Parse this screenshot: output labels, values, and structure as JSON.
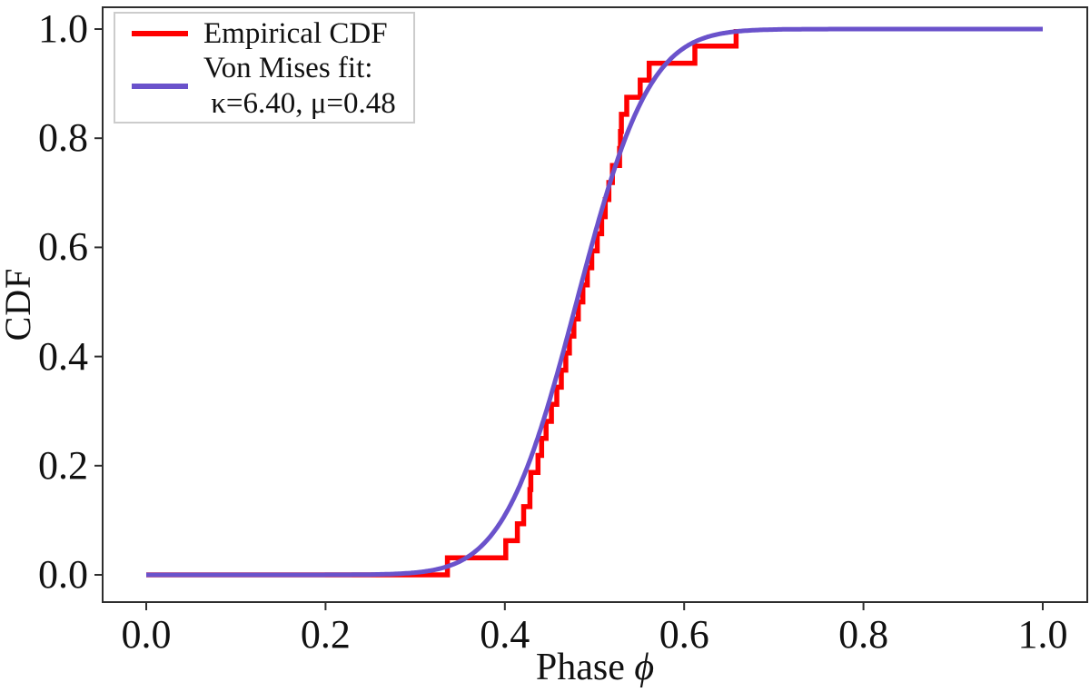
{
  "axes": {
    "xlabel_text": "Phase",
    "xlabel_symbol": "ϕ",
    "ylabel": "CDF",
    "x_tick_labels": [
      "0.0",
      "0.2",
      "0.4",
      "0.6",
      "0.8",
      "1.0"
    ],
    "y_tick_labels": [
      "0.0",
      "0.2",
      "0.4",
      "0.6",
      "0.8",
      "1.0"
    ]
  },
  "legend": {
    "entry1_label": "Empirical CDF",
    "entry2_line1": "Von Mises fit:",
    "entry2_line2": " κ=6.40, μ=0.48"
  },
  "colors": {
    "empirical": "#ff0000",
    "fit": "#6a52cb",
    "spine": "#2e2e2e",
    "legend_border": "#cccccc"
  },
  "chart_data": {
    "type": "line",
    "title": "",
    "xlabel": "Phase ϕ",
    "ylabel": "CDF",
    "xlim": [
      0.0,
      1.0
    ],
    "ylim": [
      0.0,
      1.0
    ],
    "x_ticks": [
      0.0,
      0.2,
      0.4,
      0.6,
      0.8,
      1.0
    ],
    "y_ticks": [
      0.0,
      0.2,
      0.4,
      0.6,
      0.8,
      1.0
    ],
    "grid": false,
    "legend_position": "upper left",
    "series": [
      {
        "name": "Empirical CDF",
        "render": "step_cdf",
        "color": "#ff0000",
        "line_width": 5.5,
        "n_samples": 32,
        "samples": [
          0.336,
          0.401,
          0.414,
          0.421,
          0.428,
          0.429,
          0.437,
          0.441,
          0.446,
          0.452,
          0.458,
          0.463,
          0.468,
          0.472,
          0.477,
          0.482,
          0.487,
          0.492,
          0.497,
          0.503,
          0.508,
          0.512,
          0.516,
          0.52,
          0.528,
          0.529,
          0.53,
          0.536,
          0.551,
          0.561,
          0.612,
          0.658
        ]
      },
      {
        "name": "Von Mises fit",
        "render": "vonmises_cdf",
        "color": "#6a52cb",
        "line_width": 5,
        "kappa": 6.4,
        "mu": 0.48,
        "x_start": 0.0,
        "x_end": 1.0
      }
    ]
  }
}
